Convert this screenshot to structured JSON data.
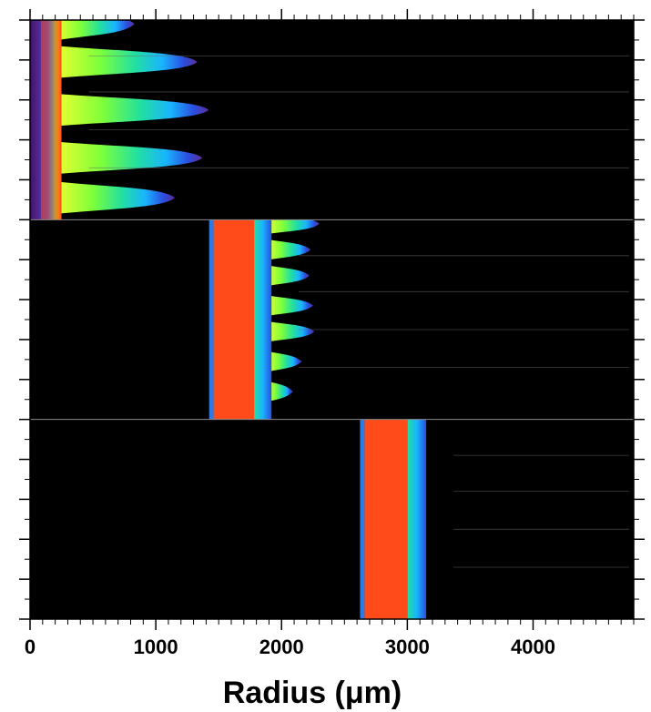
{
  "chart_data": {
    "type": "heatmap",
    "xlabel": "Radius (μm)",
    "ylabel": "",
    "xlim": [
      0,
      4800
    ],
    "x_ticks": [
      0,
      1000,
      2000,
      3000,
      4000
    ],
    "x_tick_labels": [
      "0",
      "1000",
      "2000",
      "3000",
      "4000"
    ],
    "grid": false,
    "colormap": [
      "#3b1466",
      "#5a2d9c",
      "#2a4fe0",
      "#19b4ff",
      "#22e0a0",
      "#7dff3a",
      "#e8ff30",
      "#ffb21e",
      "#ff4a1a"
    ],
    "background": "#000000",
    "panels": [
      {
        "front_inner": 0,
        "front_outer": 250,
        "finger_tips": [
          {
            "y": 0.02,
            "x": 830
          },
          {
            "y": 0.21,
            "x": 1330
          },
          {
            "y": 0.45,
            "x": 1420
          },
          {
            "y": 0.69,
            "x": 1370
          },
          {
            "y": 0.89,
            "x": 1150
          }
        ]
      },
      {
        "front_inner": 1460,
        "front_outer": 1920,
        "finger_tips": [
          {
            "y": 0.02,
            "x": 2300
          },
          {
            "y": 0.15,
            "x": 2230
          },
          {
            "y": 0.28,
            "x": 2220
          },
          {
            "y": 0.43,
            "x": 2250
          },
          {
            "y": 0.56,
            "x": 2260
          },
          {
            "y": 0.71,
            "x": 2160
          },
          {
            "y": 0.86,
            "x": 2090
          }
        ]
      },
      {
        "front_inner": 2660,
        "front_outer": 3150,
        "finger_tips": []
      }
    ]
  }
}
